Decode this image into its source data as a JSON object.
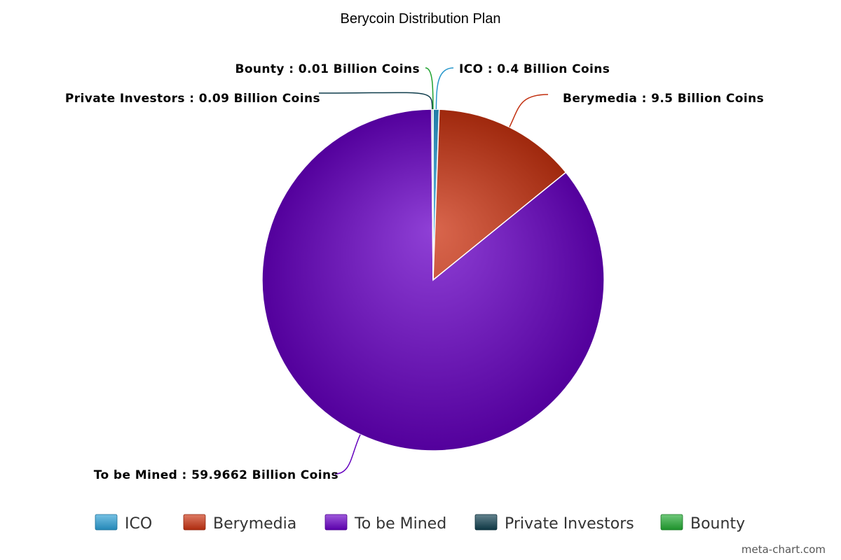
{
  "chart_data": {
    "type": "pie",
    "title": "Berycoin Distribution Plan",
    "unit_suffix": "Billion Coins",
    "slices": [
      {
        "name": "ICO",
        "value": 0.4,
        "color": "#2a9fd6"
      },
      {
        "name": "Berymedia",
        "value": 9.5,
        "color": "#cc3311"
      },
      {
        "name": "To be Mined",
        "value": 59.9662,
        "color": "#6a00c8"
      },
      {
        "name": "Private Investors",
        "value": 0.09,
        "color": "#0f3f4f"
      },
      {
        "name": "Bounty",
        "value": 0.01,
        "color": "#22aa33"
      }
    ],
    "labels": [
      {
        "text": "ICO : 0.4 Billion Coins"
      },
      {
        "text": "Berymedia : 9.5 Billion Coins"
      },
      {
        "text": "To be Mined : 59.9662 Billion Coins"
      },
      {
        "text": "Private Investors : 0.09 Billion Coins"
      },
      {
        "text": "Bounty : 0.01 Billion Coins"
      }
    ],
    "legend_position": "bottom",
    "credit": "meta-chart.com"
  }
}
